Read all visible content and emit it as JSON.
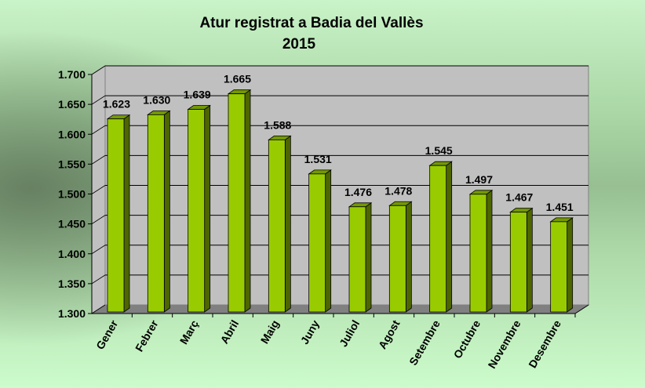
{
  "chart_data": {
    "type": "bar",
    "title": "Atur registrat a Badia del Vallès",
    "subtitle": "2015",
    "xlabel": "",
    "ylabel": "",
    "categories": [
      "Gener",
      "Febrer",
      "Març",
      "Abril",
      "Maig",
      "Juny",
      "Juliol",
      "Agost",
      "Setembre",
      "Octubre",
      "Novembre",
      "Desembre"
    ],
    "values": [
      1623,
      1630,
      1639,
      1665,
      1588,
      1531,
      1476,
      1478,
      1545,
      1497,
      1467,
      1451
    ],
    "data_labels": [
      "1.623",
      "1.630",
      "1.639",
      "1.665",
      "1.588",
      "1.531",
      "1.476",
      "1.478",
      "1.545",
      "1.497",
      "1.467",
      "1.451"
    ],
    "ylim": [
      1300,
      1700
    ],
    "yticks": [
      1300,
      1350,
      1400,
      1450,
      1500,
      1550,
      1600,
      1650,
      1700
    ],
    "ytick_labels": [
      "1.300",
      "1.350",
      "1.400",
      "1.450",
      "1.500",
      "1.550",
      "1.600",
      "1.650",
      "1.700"
    ],
    "grid": true,
    "style": "3d-column",
    "legend": "none",
    "colors": {
      "bar_front": "#99cc00",
      "bar_side": "#4d6600",
      "bar_top": "#739900",
      "wall": "#c0c0c0",
      "floor": "#808080"
    }
  }
}
